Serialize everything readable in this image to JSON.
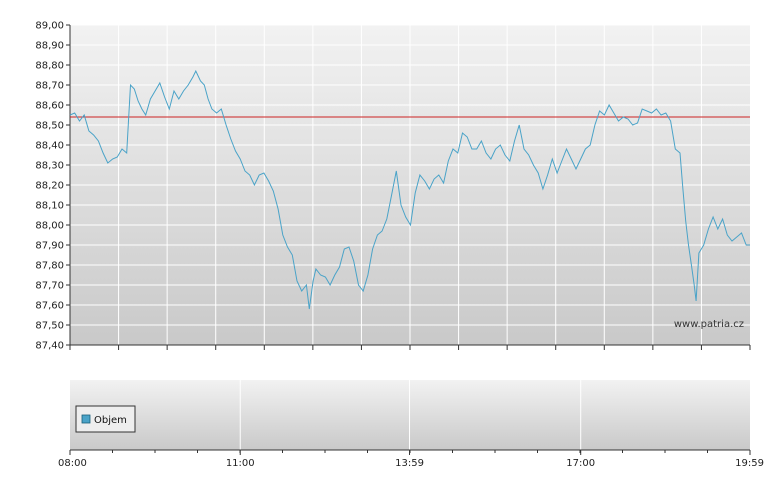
{
  "watermark": "www.patria.cz",
  "legend": {
    "label": "Objem"
  },
  "colors": {
    "price_line": "#4aa3c8",
    "reference_line": "#cc2222",
    "grid": "#ffffff",
    "bg_top": "#f2f2f2",
    "bg_bottom": "#c9c9c9",
    "axis": "#333333"
  },
  "chart_data": {
    "type": "line",
    "ylim": [
      87.4,
      89.0
    ],
    "y_ticks": [
      "89,00",
      "88,90",
      "88,80",
      "88,70",
      "88,60",
      "88,50",
      "88,40",
      "88,30",
      "88,20",
      "88,10",
      "88,00",
      "87,90",
      "87,80",
      "87,70",
      "87,60",
      "87,50",
      "87,40"
    ],
    "x_tick_labels": [
      "08:00",
      "11:00",
      "13:59",
      "17:00",
      "19:59"
    ],
    "x_range_minutes": [
      480,
      1199
    ],
    "x_tick_minutes": [
      480,
      660,
      839,
      1020,
      1199
    ],
    "reference_value": 88.54,
    "series": [
      {
        "values": [
          [
            480,
            88.55
          ],
          [
            485,
            88.56
          ],
          [
            490,
            88.52
          ],
          [
            495,
            88.55
          ],
          [
            500,
            88.47
          ],
          [
            505,
            88.45
          ],
          [
            510,
            88.42
          ],
          [
            515,
            88.36
          ],
          [
            520,
            88.31
          ],
          [
            525,
            88.33
          ],
          [
            530,
            88.34
          ],
          [
            535,
            88.38
          ],
          [
            540,
            88.36
          ],
          [
            544,
            88.7
          ],
          [
            548,
            88.68
          ],
          [
            552,
            88.62
          ],
          [
            556,
            88.58
          ],
          [
            560,
            88.55
          ],
          [
            565,
            88.63
          ],
          [
            570,
            88.67
          ],
          [
            575,
            88.71
          ],
          [
            580,
            88.64
          ],
          [
            585,
            88.58
          ],
          [
            590,
            88.67
          ],
          [
            595,
            88.63
          ],
          [
            600,
            88.67
          ],
          [
            605,
            88.7
          ],
          [
            610,
            88.74
          ],
          [
            613,
            88.77
          ],
          [
            618,
            88.72
          ],
          [
            622,
            88.7
          ],
          [
            626,
            88.63
          ],
          [
            630,
            88.58
          ],
          [
            635,
            88.56
          ],
          [
            640,
            88.58
          ],
          [
            645,
            88.5
          ],
          [
            650,
            88.43
          ],
          [
            655,
            88.37
          ],
          [
            660,
            88.33
          ],
          [
            665,
            88.27
          ],
          [
            670,
            88.25
          ],
          [
            675,
            88.2
          ],
          [
            680,
            88.25
          ],
          [
            685,
            88.26
          ],
          [
            690,
            88.22
          ],
          [
            695,
            88.17
          ],
          [
            700,
            88.08
          ],
          [
            705,
            87.95
          ],
          [
            710,
            87.89
          ],
          [
            715,
            87.85
          ],
          [
            720,
            87.72
          ],
          [
            725,
            87.67
          ],
          [
            730,
            87.7
          ],
          [
            733,
            87.58
          ],
          [
            737,
            87.72
          ],
          [
            740,
            87.78
          ],
          [
            745,
            87.75
          ],
          [
            750,
            87.74
          ],
          [
            755,
            87.7
          ],
          [
            760,
            87.75
          ],
          [
            765,
            87.79
          ],
          [
            770,
            87.88
          ],
          [
            775,
            87.89
          ],
          [
            780,
            87.82
          ],
          [
            785,
            87.7
          ],
          [
            790,
            87.67
          ],
          [
            795,
            87.75
          ],
          [
            800,
            87.88
          ],
          [
            805,
            87.95
          ],
          [
            810,
            87.97
          ],
          [
            815,
            88.03
          ],
          [
            820,
            88.15
          ],
          [
            825,
            88.27
          ],
          [
            830,
            88.1
          ],
          [
            835,
            88.04
          ],
          [
            840,
            88.0
          ],
          [
            845,
            88.16
          ],
          [
            850,
            88.25
          ],
          [
            855,
            88.22
          ],
          [
            860,
            88.18
          ],
          [
            865,
            88.23
          ],
          [
            870,
            88.25
          ],
          [
            875,
            88.21
          ],
          [
            880,
            88.32
          ],
          [
            885,
            88.38
          ],
          [
            890,
            88.36
          ],
          [
            895,
            88.46
          ],
          [
            900,
            88.44
          ],
          [
            905,
            88.38
          ],
          [
            910,
            88.38
          ],
          [
            915,
            88.42
          ],
          [
            920,
            88.36
          ],
          [
            925,
            88.33
          ],
          [
            930,
            88.38
          ],
          [
            935,
            88.4
          ],
          [
            940,
            88.35
          ],
          [
            945,
            88.32
          ],
          [
            950,
            88.42
          ],
          [
            955,
            88.5
          ],
          [
            960,
            88.38
          ],
          [
            965,
            88.35
          ],
          [
            970,
            88.3
          ],
          [
            975,
            88.26
          ],
          [
            980,
            88.18
          ],
          [
            985,
            88.25
          ],
          [
            990,
            88.33
          ],
          [
            995,
            88.26
          ],
          [
            1000,
            88.32
          ],
          [
            1005,
            88.38
          ],
          [
            1010,
            88.33
          ],
          [
            1015,
            88.28
          ],
          [
            1020,
            88.33
          ],
          [
            1025,
            88.38
          ],
          [
            1030,
            88.4
          ],
          [
            1035,
            88.5
          ],
          [
            1040,
            88.57
          ],
          [
            1045,
            88.55
          ],
          [
            1050,
            88.6
          ],
          [
            1055,
            88.56
          ],
          [
            1060,
            88.52
          ],
          [
            1065,
            88.54
          ],
          [
            1070,
            88.53
          ],
          [
            1075,
            88.5
          ],
          [
            1080,
            88.51
          ],
          [
            1085,
            88.58
          ],
          [
            1090,
            88.57
          ],
          [
            1095,
            88.56
          ],
          [
            1100,
            88.58
          ],
          [
            1105,
            88.55
          ],
          [
            1110,
            88.56
          ],
          [
            1115,
            88.52
          ],
          [
            1120,
            88.38
          ],
          [
            1125,
            88.36
          ],
          [
            1128,
            88.18
          ],
          [
            1131,
            88.02
          ],
          [
            1134,
            87.9
          ],
          [
            1137,
            87.8
          ],
          [
            1140,
            87.7
          ],
          [
            1142,
            87.62
          ],
          [
            1145,
            87.86
          ],
          [
            1150,
            87.9
          ],
          [
            1155,
            87.98
          ],
          [
            1160,
            88.04
          ],
          [
            1165,
            87.98
          ],
          [
            1170,
            88.03
          ],
          [
            1175,
            87.95
          ],
          [
            1180,
            87.92
          ],
          [
            1185,
            87.94
          ],
          [
            1190,
            87.96
          ],
          [
            1195,
            87.9
          ],
          [
            1199,
            87.9
          ]
        ]
      }
    ]
  }
}
